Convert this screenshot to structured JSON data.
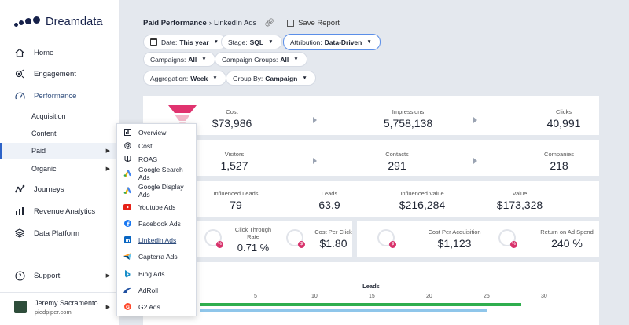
{
  "brand": {
    "name": "Dreamdata"
  },
  "sidebar": {
    "items": [
      {
        "label": "Home",
        "icon": "home-icon"
      },
      {
        "label": "Engagement",
        "icon": "engagement-icon"
      },
      {
        "label": "Performance",
        "icon": "performance-icon"
      },
      {
        "label": "Journeys",
        "icon": "journeys-icon"
      },
      {
        "label": "Revenue Analytics",
        "icon": "revenue-icon"
      },
      {
        "label": "Data Platform",
        "icon": "layers-icon"
      },
      {
        "label": "Support",
        "icon": "help-icon"
      }
    ],
    "sub_items": [
      "Acquisition",
      "Content",
      "Paid",
      "Organic"
    ],
    "user": {
      "name": "Jeremy Sacramento",
      "org": "piedpiper.com"
    }
  },
  "breadcrumb": {
    "parent": "Paid Performance",
    "current": "LinkedIn Ads",
    "save_label": "Save Report"
  },
  "filters": [
    {
      "label": "Date:",
      "value": "This year"
    },
    {
      "label": "Stage:",
      "value": "SQL"
    },
    {
      "label": "Attribution:",
      "value": "Data-Driven"
    },
    {
      "label": "Campaigns:",
      "value": "All"
    },
    {
      "label": "Campaign Groups:",
      "value": "All"
    },
    {
      "label": "Aggregation:",
      "value": "Week"
    },
    {
      "label": "Group By:",
      "value": "Campaign"
    }
  ],
  "metrics": {
    "cost": {
      "label": "Cost",
      "value": "$73,986"
    },
    "impressions": {
      "label": "Impressions",
      "value": "5,758,138"
    },
    "clicks": {
      "label": "Clicks",
      "value": "40,991"
    },
    "visitors": {
      "label": "Visitors",
      "value": "1,527"
    },
    "contacts": {
      "label": "Contacts",
      "value": "291"
    },
    "companies": {
      "label": "Companies",
      "value": "218"
    },
    "influenced_leads": {
      "label": "Influenced Leads",
      "value": "79"
    },
    "leads": {
      "label": "Leads",
      "value": "63.9"
    },
    "influenced_value": {
      "label": "Influenced Value",
      "value": "$216,284"
    },
    "value": {
      "label": "Value",
      "value": "$173,328"
    },
    "ctr": {
      "label_1": "Click Through",
      "label_2": "Rate",
      "value": "0.71 %"
    },
    "cpc": {
      "label": "Cost Per Click",
      "value": "$1.80"
    },
    "cpa": {
      "label": "Cost Per Acquisition",
      "value": "$1,123"
    },
    "roas": {
      "label": "Return on Ad Spend",
      "value": "240 %"
    }
  },
  "chart": {
    "title": "Leads",
    "ticks": [
      "5",
      "10",
      "15",
      "20",
      "25",
      "30"
    ]
  },
  "chart_data": {
    "type": "bar",
    "title": "Leads",
    "xlim": [
      0,
      30
    ],
    "series": [
      {
        "values": [
          28
        ]
      },
      {
        "values": [
          25
        ]
      }
    ],
    "colors": [
      "#2fae4e",
      "#8fc6ea"
    ]
  },
  "dropdown": {
    "items": [
      {
        "label": "Overview",
        "icon": "overview-icon"
      },
      {
        "label": "Cost",
        "icon": "cost-icon"
      },
      {
        "label": "ROAS",
        "icon": "roas-icon"
      },
      {
        "label": "Google Search Ads",
        "icon": "google-ads-icon"
      },
      {
        "label": "Google Display Ads",
        "icon": "google-ads-icon"
      },
      {
        "label": "Youtube Ads",
        "icon": "youtube-icon"
      },
      {
        "label": "Facebook Ads",
        "icon": "facebook-icon"
      },
      {
        "label": "Linkedin Ads",
        "icon": "linkedin-icon"
      },
      {
        "label": "Capterra Ads",
        "icon": "capterra-icon"
      },
      {
        "label": "Bing Ads",
        "icon": "bing-icon"
      },
      {
        "label": "AdRoll",
        "icon": "adroll-icon"
      },
      {
        "label": "G2 Ads",
        "icon": "g2-icon"
      }
    ]
  },
  "colors": {
    "accent": "#2d63c8",
    "bar_green": "#2fae4e",
    "bar_blue": "#8fc6ea",
    "badge": "#d8326b",
    "funnel": "#e0336f"
  }
}
